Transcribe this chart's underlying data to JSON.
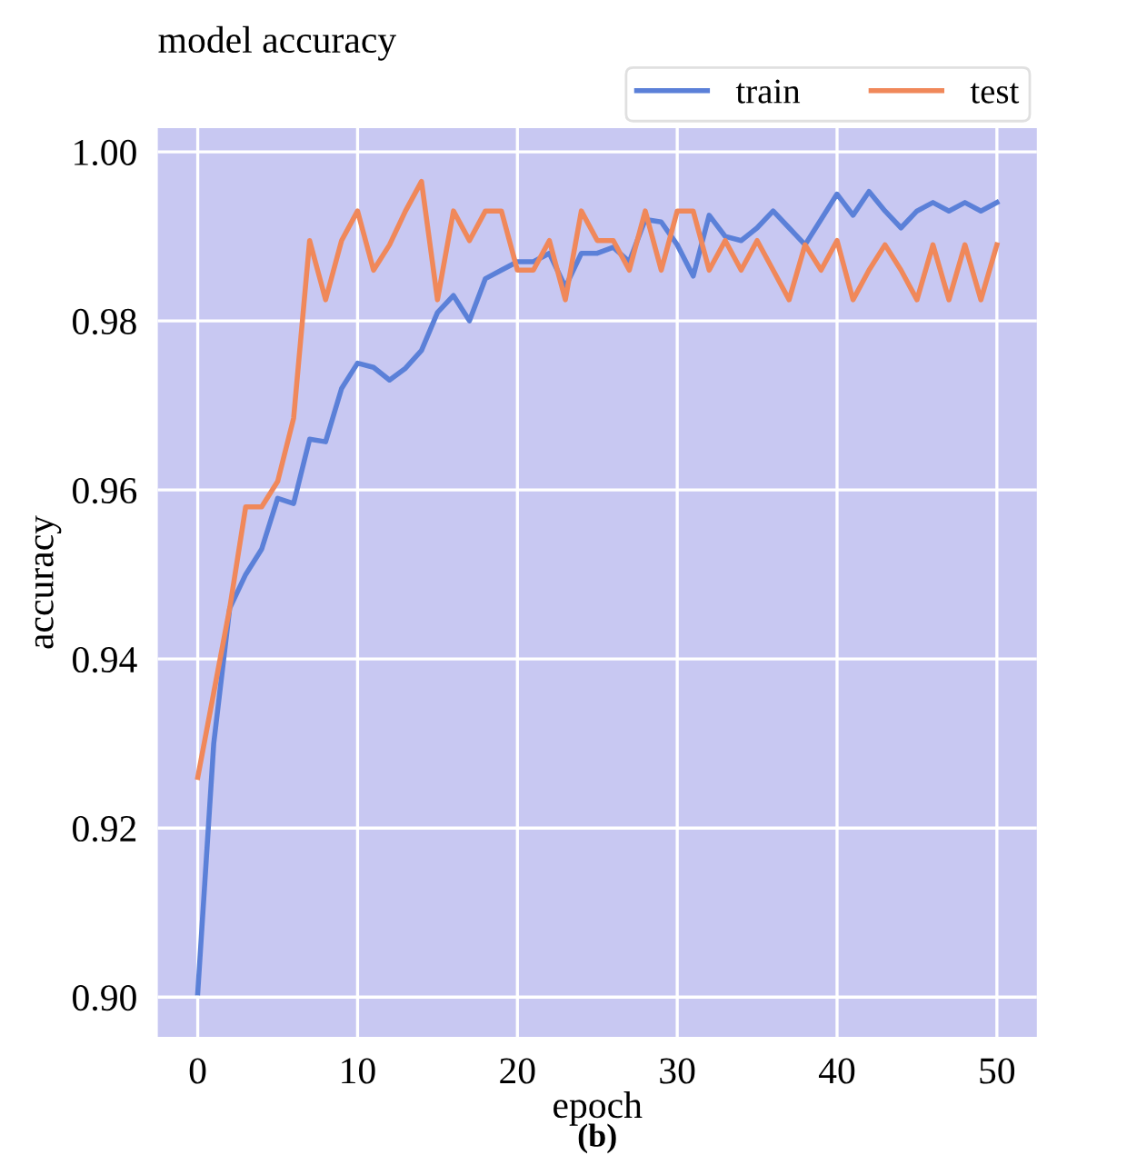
{
  "chart_data": {
    "type": "line",
    "title": "model accuracy",
    "xlabel": "epoch",
    "ylabel": "accuracy",
    "x": [
      0,
      1,
      2,
      3,
      4,
      5,
      6,
      7,
      8,
      9,
      10,
      11,
      12,
      13,
      14,
      15,
      16,
      17,
      18,
      19,
      20,
      21,
      22,
      23,
      24,
      25,
      26,
      27,
      28,
      29,
      30,
      31,
      32,
      33,
      34,
      35,
      36,
      37,
      38,
      39,
      40,
      41,
      42,
      43,
      44,
      45,
      46,
      47,
      48,
      49,
      50
    ],
    "series": [
      {
        "name": "train",
        "color": "#5b80d8",
        "values": [
          0.9005,
          0.93,
          0.946,
          0.95,
          0.953,
          0.959,
          0.9584,
          0.966,
          0.9657,
          0.972,
          0.975,
          0.9745,
          0.973,
          0.9744,
          0.9765,
          0.981,
          0.983,
          0.98,
          0.985,
          0.986,
          0.987,
          0.987,
          0.988,
          0.984,
          0.988,
          0.988,
          0.9887,
          0.987,
          0.992,
          0.9917,
          0.989,
          0.9853,
          0.9925,
          0.99,
          0.9895,
          0.991,
          0.993,
          0.991,
          0.989,
          0.992,
          0.995,
          0.9925,
          0.9953,
          0.993,
          0.991,
          0.993,
          0.994,
          0.993,
          0.994,
          0.993,
          0.994
        ]
      },
      {
        "name": "test",
        "color": "#f0885a",
        "values": [
          0.926,
          0.936,
          0.946,
          0.958,
          0.958,
          0.961,
          0.9685,
          0.9895,
          0.9825,
          0.9895,
          0.993,
          0.986,
          0.989,
          0.993,
          0.9965,
          0.9825,
          0.993,
          0.9895,
          0.993,
          0.993,
          0.986,
          0.986,
          0.9895,
          0.9825,
          0.993,
          0.9895,
          0.9895,
          0.986,
          0.993,
          0.986,
          0.993,
          0.993,
          0.986,
          0.9895,
          0.986,
          0.9895,
          0.986,
          0.9825,
          0.989,
          0.986,
          0.9895,
          0.9825,
          0.986,
          0.989,
          0.986,
          0.9825,
          0.989,
          0.9825,
          0.989,
          0.9825,
          0.989
        ]
      }
    ],
    "xlim": [
      -2.5,
      52.5
    ],
    "ylim": [
      0.8953,
      1.0028
    ],
    "xticks": [
      0,
      10,
      20,
      30,
      40,
      50
    ],
    "yticks": [
      {
        "value": 0.9,
        "label": "0.90"
      },
      0.92,
      0.94,
      0.96,
      0.98,
      {
        "value": 1.0,
        "label": "1.00"
      }
    ],
    "grid": true,
    "legend": "top right",
    "annotations": [
      "(b)"
    ]
  }
}
